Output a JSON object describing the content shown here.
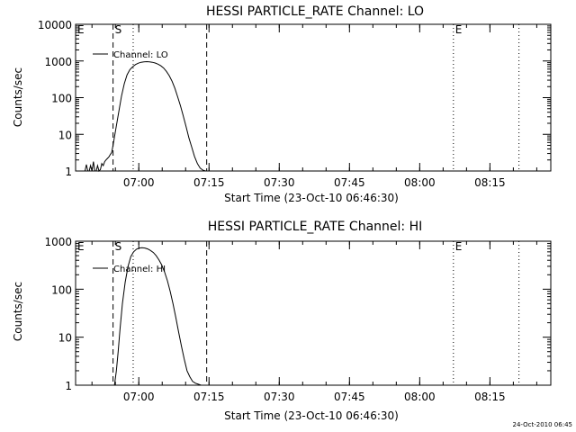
{
  "chart_data": [
    {
      "type": "line",
      "title": "HESSI PARTICLE_RATE Channel: LO",
      "xlabel": "Start Time (23-Oct-10 06:46:30)",
      "ylabel": "Counts/sec",
      "yscale": "log",
      "x_units": "minutes since 06:46:30",
      "xlim": [
        0,
        101.5
      ],
      "ylim": [
        1,
        10000
      ],
      "x_tick_values": [
        13.5,
        28.5,
        43.5,
        58.5,
        73.5,
        88.5
      ],
      "x_tick_labels": [
        "07:00",
        "07:15",
        "07:30",
        "07:45",
        "08:00",
        "08:15"
      ],
      "y_tick_values": [
        1,
        10,
        100,
        1000,
        10000
      ],
      "y_tick_labels": [
        "1",
        "10",
        "100",
        "1000",
        "10000"
      ],
      "legend": "top-left",
      "markers": [
        {
          "label": "E",
          "x": 0,
          "style": "dotted"
        },
        {
          "label": "S",
          "x": 8.0,
          "style": "dashed"
        },
        {
          "label": "",
          "x": 12.3,
          "style": "dotted"
        },
        {
          "label": "",
          "x": 28.0,
          "style": "dashed"
        },
        {
          "label": "E",
          "x": 80.7,
          "style": "dotted"
        },
        {
          "label": "",
          "x": 94.7,
          "style": "dotted"
        }
      ],
      "series": [
        {
          "name": "Channel: LO",
          "x": [
            2.0,
            2.3,
            2.6,
            2.9,
            3.2,
            3.5,
            3.8,
            4.1,
            4.4,
            4.7,
            5.0,
            5.3,
            5.6,
            5.9,
            6.2,
            6.5,
            6.8,
            7.1,
            7.4,
            7.7,
            8.0,
            8.6,
            9.2,
            9.8,
            10.4,
            11.0,
            11.6,
            12.2,
            12.8,
            13.4,
            14.0,
            14.6,
            15.2,
            15.8,
            16.4,
            17.0,
            17.6,
            18.2,
            18.8,
            19.4,
            20.0,
            20.6,
            21.2,
            21.8,
            22.4,
            23.0,
            23.6,
            24.2,
            24.8,
            25.4,
            26.0,
            26.6,
            27.2,
            27.8
          ],
          "values": [
            1,
            1.5,
            1,
            1,
            1.4,
            1,
            1.8,
            1,
            1,
            1.4,
            1,
            1.1,
            1.6,
            1.4,
            1.8,
            2.0,
            2.2,
            2.4,
            2.8,
            3.2,
            5,
            14,
            40,
            110,
            240,
            420,
            580,
            700,
            800,
            870,
            920,
            950,
            960,
            950,
            920,
            880,
            820,
            740,
            640,
            520,
            400,
            280,
            180,
            105,
            60,
            32,
            16,
            8,
            4.5,
            2.5,
            1.6,
            1.2,
            1.05,
            1
          ]
        }
      ]
    },
    {
      "type": "line",
      "title": "HESSI PARTICLE_RATE Channel: HI",
      "xlabel": "Start Time (23-Oct-10 06:46:30)",
      "ylabel": "Counts/sec",
      "yscale": "log",
      "x_units": "minutes since 06:46:30",
      "xlim": [
        0,
        101.5
      ],
      "ylim": [
        1,
        1000
      ],
      "x_tick_values": [
        13.5,
        28.5,
        43.5,
        58.5,
        73.5,
        88.5
      ],
      "x_tick_labels": [
        "07:00",
        "07:15",
        "07:30",
        "07:45",
        "08:00",
        "08:15"
      ],
      "y_tick_values": [
        1,
        10,
        100,
        1000
      ],
      "y_tick_labels": [
        "1",
        "10",
        "100",
        "1000"
      ],
      "legend": "top-left",
      "markers": [
        {
          "label": "E",
          "x": 0,
          "style": "dotted"
        },
        {
          "label": "S",
          "x": 8.0,
          "style": "dashed"
        },
        {
          "label": "",
          "x": 12.3,
          "style": "dotted"
        },
        {
          "label": "",
          "x": 28.0,
          "style": "dashed"
        },
        {
          "label": "E",
          "x": 80.7,
          "style": "dotted"
        },
        {
          "label": "",
          "x": 94.7,
          "style": "dotted"
        }
      ],
      "series": [
        {
          "name": "Channel: HI",
          "x": [
            8.3,
            8.7,
            9.1,
            9.5,
            10.0,
            10.6,
            11.2,
            11.8,
            12.4,
            13.0,
            13.6,
            14.2,
            14.8,
            15.4,
            16.0,
            16.6,
            17.2,
            17.8,
            18.4,
            19.0,
            19.6,
            20.2,
            20.8,
            21.4,
            22.0,
            22.6,
            23.2,
            23.8,
            24.4,
            25.0,
            25.6,
            26.2,
            26.8
          ],
          "values": [
            1,
            2,
            5,
            15,
            50,
            140,
            300,
            480,
            600,
            680,
            720,
            730,
            720,
            690,
            640,
            580,
            500,
            410,
            320,
            230,
            150,
            90,
            50,
            26,
            13,
            6.5,
            3.5,
            2.0,
            1.5,
            1.2,
            1.1,
            1.05,
            1
          ]
        }
      ]
    }
  ],
  "footer": {
    "timestamp": "24-Oct-2010 06:45"
  }
}
